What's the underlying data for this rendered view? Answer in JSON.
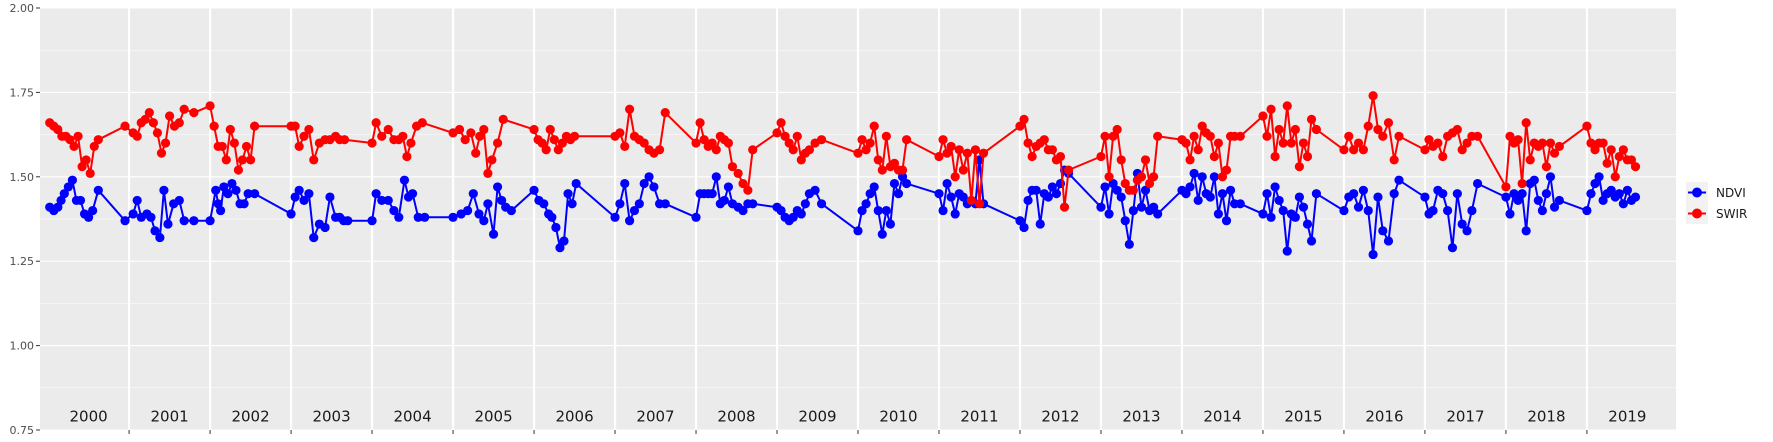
{
  "chart_data": {
    "type": "line",
    "title": "",
    "xlabel": "",
    "ylabel": "",
    "ylim": [
      0.75,
      2.0
    ],
    "y_ticks": [
      "0.75",
      "1.00",
      "1.25",
      "1.50",
      "1.75",
      "2.00"
    ],
    "y_tick_values": [
      0.75,
      1.0,
      1.25,
      1.5,
      1.75,
      2.0
    ],
    "xlim": [
      1999.9,
      2020.1
    ],
    "years": [
      "2000",
      "2001",
      "2002",
      "2003",
      "2004",
      "2005",
      "2006",
      "2007",
      "2008",
      "2009",
      "2010",
      "2011",
      "2012",
      "2013",
      "2014",
      "2015",
      "2016",
      "2017",
      "2018",
      "2019"
    ],
    "grid": true,
    "legend_position": "right",
    "series": [
      {
        "name": "NDVI",
        "color": "#0000ff",
        "x": [
          2000.02,
          2000.07,
          2000.12,
          2000.16,
          2000.2,
          2000.25,
          2000.3,
          2000.35,
          2000.4,
          2000.45,
          2000.5,
          2000.55,
          2000.62,
          2000.95,
          2001.05,
          2001.1,
          2001.15,
          2001.22,
          2001.27,
          2001.32,
          2001.38,
          2001.43,
          2001.48,
          2001.55,
          2001.62,
          2001.68,
          2001.8,
          2002.0,
          2002.07,
          2002.1,
          2002.13,
          2002.17,
          2002.22,
          2002.27,
          2002.32,
          2002.37,
          2002.42,
          2002.47,
          2002.55,
          2003.0,
          2003.05,
          2003.1,
          2003.16,
          2003.22,
          2003.28,
          2003.35,
          2003.42,
          2003.48,
          2003.55,
          2003.6,
          2003.65,
          2003.7,
          2004.0,
          2004.05,
          2004.12,
          2004.2,
          2004.27,
          2004.33,
          2004.4,
          2004.45,
          2004.5,
          2004.57,
          2004.65,
          2005.0,
          2005.1,
          2005.18,
          2005.25,
          2005.32,
          2005.38,
          2005.43,
          2005.5,
          2005.55,
          2005.6,
          2005.65,
          2005.72,
          2006.0,
          2006.06,
          2006.12,
          2006.18,
          2006.22,
          2006.27,
          2006.32,
          2006.37,
          2006.42,
          2006.47,
          2006.52,
          2007.0,
          2007.06,
          2007.12,
          2007.18,
          2007.24,
          2007.3,
          2007.36,
          2007.42,
          2007.48,
          2007.55,
          2007.62,
          2008.0,
          2008.05,
          2008.1,
          2008.15,
          2008.2,
          2008.25,
          2008.3,
          2008.35,
          2008.4,
          2008.45,
          2008.52,
          2008.58,
          2008.64,
          2008.7,
          2009.0,
          2009.05,
          2009.1,
          2009.15,
          2009.2,
          2009.25,
          2009.3,
          2009.35,
          2009.4,
          2009.47,
          2009.55,
          2010.0,
          2010.05,
          2010.1,
          2010.15,
          2010.2,
          2010.25,
          2010.3,
          2010.35,
          2010.4,
          2010.45,
          2010.5,
          2010.55,
          2010.6,
          2011.0,
          2011.05,
          2011.1,
          2011.15,
          2011.2,
          2011.25,
          2011.3,
          2011.35,
          2011.4,
          2011.45,
          2011.5,
          2011.55,
          2012.0,
          2012.05,
          2012.1,
          2012.15,
          2012.2,
          2012.25,
          2012.3,
          2012.35,
          2012.4,
          2012.45,
          2012.5,
          2012.55,
          2012.6,
          2013.0,
          2013.05,
          2013.1,
          2013.15,
          2013.2,
          2013.25,
          2013.3,
          2013.35,
          2013.4,
          2013.45,
          2013.5,
          2013.55,
          2013.6,
          2013.65,
          2013.7,
          2014.0,
          2014.05,
          2014.1,
          2014.15,
          2014.2,
          2014.25,
          2014.3,
          2014.35,
          2014.4,
          2014.45,
          2014.5,
          2014.55,
          2014.6,
          2014.65,
          2014.72,
          2015.0,
          2015.05,
          2015.1,
          2015.15,
          2015.2,
          2015.25,
          2015.3,
          2015.35,
          2015.4,
          2015.45,
          2015.5,
          2015.55,
          2015.6,
          2015.66,
          2016.0,
          2016.06,
          2016.12,
          2016.18,
          2016.24,
          2016.3,
          2016.36,
          2016.42,
          2016.48,
          2016.55,
          2016.62,
          2016.68,
          2017.0,
          2017.05,
          2017.1,
          2017.16,
          2017.22,
          2017.28,
          2017.34,
          2017.4,
          2017.46,
          2017.52,
          2017.58,
          2017.65,
          2018.0,
          2018.05,
          2018.1,
          2018.15,
          2018.2,
          2018.25,
          2018.3,
          2018.35,
          2018.4,
          2018.45,
          2018.5,
          2018.55,
          2018.6,
          2018.66,
          2019.0,
          2019.05,
          2019.1,
          2019.15,
          2019.2,
          2019.25,
          2019.3,
          2019.35,
          2019.4,
          2019.45,
          2019.5,
          2019.55,
          2019.6
        ],
        "y": [
          1.41,
          1.4,
          1.41,
          1.43,
          1.45,
          1.47,
          1.49,
          1.43,
          1.43,
          1.39,
          1.38,
          1.4,
          1.46,
          1.37,
          1.39,
          1.43,
          1.38,
          1.39,
          1.38,
          1.34,
          1.32,
          1.46,
          1.36,
          1.42,
          1.43,
          1.37,
          1.37,
          1.37,
          1.46,
          1.42,
          1.4,
          1.47,
          1.45,
          1.48,
          1.46,
          1.42,
          1.42,
          1.45,
          1.45,
          1.39,
          1.44,
          1.46,
          1.43,
          1.45,
          1.32,
          1.36,
          1.35,
          1.44,
          1.38,
          1.38,
          1.37,
          1.37,
          1.37,
          1.45,
          1.43,
          1.43,
          1.4,
          1.38,
          1.49,
          1.44,
          1.45,
          1.38,
          1.38,
          1.38,
          1.39,
          1.4,
          1.45,
          1.39,
          1.37,
          1.42,
          1.33,
          1.47,
          1.43,
          1.41,
          1.4,
          1.46,
          1.43,
          1.42,
          1.39,
          1.38,
          1.35,
          1.29,
          1.31,
          1.45,
          1.42,
          1.48,
          1.38,
          1.42,
          1.48,
          1.37,
          1.4,
          1.42,
          1.48,
          1.5,
          1.47,
          1.42,
          1.42,
          1.38,
          1.45,
          1.45,
          1.45,
          1.45,
          1.5,
          1.42,
          1.43,
          1.47,
          1.42,
          1.41,
          1.4,
          1.42,
          1.42,
          1.41,
          1.4,
          1.38,
          1.37,
          1.38,
          1.4,
          1.39,
          1.42,
          1.45,
          1.46,
          1.42,
          1.34,
          1.4,
          1.42,
          1.45,
          1.47,
          1.4,
          1.33,
          1.4,
          1.36,
          1.48,
          1.45,
          1.5,
          1.48,
          1.45,
          1.4,
          1.48,
          1.44,
          1.39,
          1.45,
          1.44,
          1.42,
          1.43,
          1.42,
          1.55,
          1.42,
          1.37,
          1.35,
          1.43,
          1.46,
          1.46,
          1.36,
          1.45,
          1.44,
          1.47,
          1.45,
          1.48,
          1.52,
          1.51,
          1.41,
          1.47,
          1.39,
          1.48,
          1.46,
          1.44,
          1.37,
          1.3,
          1.4,
          1.51,
          1.41,
          1.46,
          1.4,
          1.41,
          1.39,
          1.46,
          1.45,
          1.47,
          1.51,
          1.43,
          1.5,
          1.45,
          1.44,
          1.5,
          1.39,
          1.45,
          1.37,
          1.46,
          1.42,
          1.42,
          1.39,
          1.45,
          1.38,
          1.47,
          1.43,
          1.4,
          1.28,
          1.39,
          1.38,
          1.44,
          1.41,
          1.36,
          1.31,
          1.45,
          1.4,
          1.44,
          1.45,
          1.41,
          1.46,
          1.4,
          1.27,
          1.44,
          1.34,
          1.31,
          1.45,
          1.49,
          1.44,
          1.39,
          1.4,
          1.46,
          1.45,
          1.4,
          1.29,
          1.45,
          1.36,
          1.34,
          1.4,
          1.48,
          1.44,
          1.39,
          1.45,
          1.43,
          1.45,
          1.34,
          1.48,
          1.49,
          1.43,
          1.4,
          1.45,
          1.5,
          1.41,
          1.43,
          1.4,
          1.45,
          1.48,
          1.5,
          1.43,
          1.45,
          1.46,
          1.44,
          1.45,
          1.42,
          1.46,
          1.43,
          1.44
        ]
      },
      {
        "name": "SWIR",
        "color": "#ff0000",
        "x": [
          2000.02,
          2000.07,
          2000.12,
          2000.17,
          2000.22,
          2000.27,
          2000.32,
          2000.37,
          2000.42,
          2000.47,
          2000.52,
          2000.57,
          2000.62,
          2000.95,
          2001.05,
          2001.1,
          2001.15,
          2001.2,
          2001.25,
          2001.3,
          2001.35,
          2001.4,
          2001.45,
          2001.5,
          2001.56,
          2001.62,
          2001.68,
          2001.8,
          2002.0,
          2002.05,
          2002.1,
          2002.15,
          2002.2,
          2002.25,
          2002.3,
          2002.35,
          2002.4,
          2002.45,
          2002.5,
          2002.55,
          2003.0,
          2003.05,
          2003.1,
          2003.16,
          2003.22,
          2003.28,
          2003.35,
          2003.42,
          2003.48,
          2003.55,
          2003.6,
          2003.66,
          2004.0,
          2004.05,
          2004.12,
          2004.2,
          2004.27,
          2004.33,
          2004.38,
          2004.43,
          2004.48,
          2004.55,
          2004.62,
          2005.0,
          2005.08,
          2005.15,
          2005.22,
          2005.28,
          2005.33,
          2005.38,
          2005.43,
          2005.48,
          2005.55,
          2005.62,
          2006.0,
          2006.05,
          2006.1,
          2006.15,
          2006.2,
          2006.25,
          2006.3,
          2006.35,
          2006.4,
          2006.45,
          2006.5,
          2007.0,
          2007.06,
          2007.12,
          2007.18,
          2007.24,
          2007.3,
          2007.36,
          2007.42,
          2007.48,
          2007.55,
          2007.62,
          2008.0,
          2008.05,
          2008.1,
          2008.15,
          2008.2,
          2008.25,
          2008.3,
          2008.35,
          2008.4,
          2008.45,
          2008.52,
          2008.58,
          2008.64,
          2008.7,
          2009.0,
          2009.05,
          2009.1,
          2009.15,
          2009.2,
          2009.25,
          2009.3,
          2009.35,
          2009.4,
          2009.47,
          2009.55,
          2010.0,
          2010.05,
          2010.1,
          2010.15,
          2010.2,
          2010.25,
          2010.3,
          2010.35,
          2010.4,
          2010.45,
          2010.5,
          2010.55,
          2010.6,
          2011.0,
          2011.05,
          2011.1,
          2011.15,
          2011.2,
          2011.25,
          2011.3,
          2011.35,
          2011.4,
          2011.45,
          2011.5,
          2011.55,
          2012.0,
          2012.05,
          2012.1,
          2012.15,
          2012.2,
          2012.25,
          2012.3,
          2012.35,
          2012.4,
          2012.45,
          2012.5,
          2012.55,
          2012.6,
          2013.0,
          2013.05,
          2013.1,
          2013.15,
          2013.2,
          2013.25,
          2013.3,
          2013.35,
          2013.4,
          2013.45,
          2013.5,
          2013.55,
          2013.6,
          2013.65,
          2013.7,
          2014.0,
          2014.05,
          2014.1,
          2014.15,
          2014.2,
          2014.25,
          2014.3,
          2014.35,
          2014.4,
          2014.45,
          2014.5,
          2014.55,
          2014.6,
          2014.65,
          2014.72,
          2015.0,
          2015.05,
          2015.1,
          2015.15,
          2015.2,
          2015.25,
          2015.3,
          2015.35,
          2015.4,
          2015.45,
          2015.5,
          2015.55,
          2015.6,
          2015.66,
          2016.0,
          2016.06,
          2016.12,
          2016.18,
          2016.24,
          2016.3,
          2016.36,
          2016.42,
          2016.48,
          2016.55,
          2016.62,
          2016.68,
          2017.0,
          2017.05,
          2017.1,
          2017.16,
          2017.22,
          2017.28,
          2017.34,
          2017.4,
          2017.46,
          2017.52,
          2017.58,
          2017.65,
          2018.0,
          2018.05,
          2018.1,
          2018.15,
          2018.2,
          2018.25,
          2018.3,
          2018.35,
          2018.4,
          2018.45,
          2018.5,
          2018.55,
          2018.6,
          2018.66,
          2019.0,
          2019.05,
          2019.1,
          2019.15,
          2019.2,
          2019.25,
          2019.3,
          2019.35,
          2019.4,
          2019.45,
          2019.5,
          2019.55,
          2019.6
        ],
        "y": [
          1.66,
          1.65,
          1.64,
          1.62,
          1.62,
          1.61,
          1.59,
          1.62,
          1.53,
          1.55,
          1.51,
          1.59,
          1.61,
          1.65,
          1.63,
          1.62,
          1.66,
          1.67,
          1.69,
          1.66,
          1.63,
          1.57,
          1.6,
          1.68,
          1.65,
          1.66,
          1.7,
          1.69,
          1.71,
          1.65,
          1.59,
          1.59,
          1.55,
          1.64,
          1.6,
          1.52,
          1.55,
          1.59,
          1.55,
          1.65,
          1.65,
          1.65,
          1.59,
          1.62,
          1.64,
          1.55,
          1.6,
          1.61,
          1.61,
          1.62,
          1.61,
          1.61,
          1.6,
          1.66,
          1.62,
          1.64,
          1.61,
          1.61,
          1.62,
          1.56,
          1.6,
          1.65,
          1.66,
          1.63,
          1.64,
          1.61,
          1.63,
          1.57,
          1.62,
          1.64,
          1.51,
          1.55,
          1.6,
          1.67,
          1.64,
          1.61,
          1.6,
          1.58,
          1.64,
          1.61,
          1.58,
          1.6,
          1.62,
          1.61,
          1.62,
          1.62,
          1.63,
          1.59,
          1.7,
          1.62,
          1.61,
          1.6,
          1.58,
          1.57,
          1.58,
          1.69,
          1.6,
          1.66,
          1.61,
          1.59,
          1.6,
          1.58,
          1.62,
          1.61,
          1.6,
          1.53,
          1.51,
          1.48,
          1.46,
          1.58,
          1.63,
          1.66,
          1.62,
          1.6,
          1.58,
          1.62,
          1.55,
          1.57,
          1.58,
          1.6,
          1.61,
          1.57,
          1.61,
          1.58,
          1.6,
          1.65,
          1.55,
          1.52,
          1.62,
          1.53,
          1.54,
          1.52,
          1.52,
          1.61,
          1.56,
          1.61,
          1.57,
          1.59,
          1.5,
          1.58,
          1.52,
          1.57,
          1.43,
          1.58,
          1.42,
          1.57,
          1.65,
          1.67,
          1.6,
          1.56,
          1.59,
          1.6,
          1.61,
          1.58,
          1.58,
          1.55,
          1.56,
          1.41,
          1.52,
          1.56,
          1.62,
          1.5,
          1.62,
          1.64,
          1.55,
          1.48,
          1.46,
          1.46,
          1.49,
          1.5,
          1.55,
          1.48,
          1.5,
          1.62,
          1.61,
          1.6,
          1.55,
          1.62,
          1.58,
          1.65,
          1.63,
          1.62,
          1.56,
          1.6,
          1.5,
          1.52,
          1.62,
          1.62,
          1.62,
          1.68,
          1.62,
          1.7,
          1.56,
          1.64,
          1.6,
          1.71,
          1.6,
          1.64,
          1.53,
          1.6,
          1.56,
          1.67,
          1.64,
          1.58,
          1.62,
          1.58,
          1.6,
          1.58,
          1.65,
          1.74,
          1.64,
          1.62,
          1.66,
          1.55,
          1.62,
          1.58,
          1.61,
          1.59,
          1.6,
          1.56,
          1.62,
          1.63,
          1.64,
          1.58,
          1.6,
          1.62,
          1.62,
          1.47,
          1.62,
          1.6,
          1.61,
          1.48,
          1.66,
          1.55,
          1.6,
          1.59,
          1.6,
          1.53,
          1.6,
          1.57,
          1.59,
          1.65,
          1.6,
          1.58,
          1.6,
          1.6,
          1.54,
          1.58,
          1.5,
          1.56,
          1.58,
          1.55,
          1.55,
          1.53
        ]
      }
    ]
  }
}
